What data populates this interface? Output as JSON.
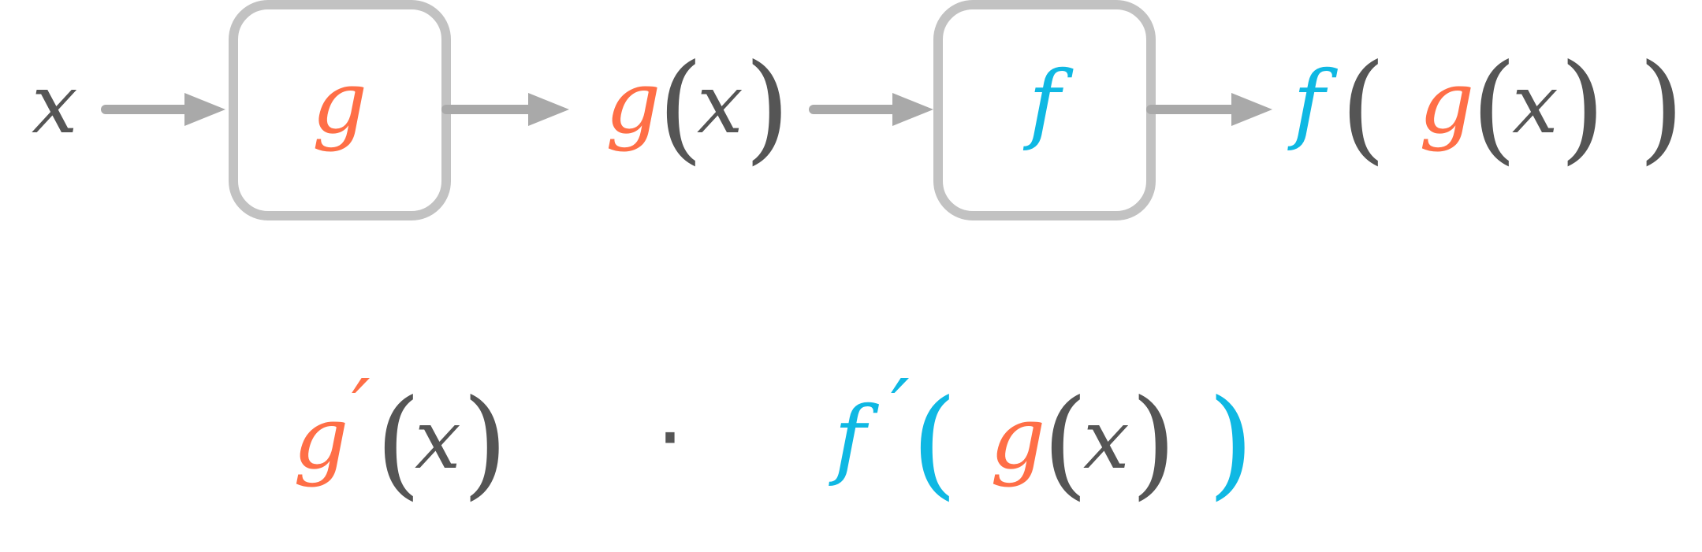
{
  "colors": {
    "g": "#ff6f47",
    "f": "#0fb8e3",
    "ink": "#555555",
    "arrow": "#a9a9a9",
    "box": "#c2c2c2"
  },
  "top_row": {
    "input": "x",
    "box_g_label": "g",
    "mid_g": "g",
    "mid_open": "(",
    "mid_x": "x",
    "mid_close": ")",
    "box_f_label": "f",
    "out_f": "f",
    "out_outer_open": "(",
    "out_g": "g",
    "out_inner_open": "(",
    "out_x": "x",
    "out_inner_close": ")",
    "out_outer_close": ")"
  },
  "bottom_row": {
    "gprime_g": "g",
    "gprime_prime": "′",
    "gprime_open": "(",
    "gprime_x": "x",
    "gprime_close": ")",
    "multiply": "·",
    "fprime_f": "f",
    "fprime_prime": "′",
    "fprime_outer_open": "(",
    "fprime_g": "g",
    "fprime_inner_open": "(",
    "fprime_x": "x",
    "fprime_inner_close": ")",
    "fprime_outer_close": ")"
  }
}
